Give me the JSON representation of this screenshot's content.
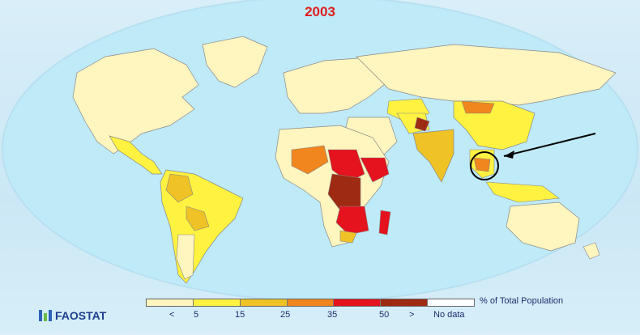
{
  "title": "2003",
  "legend": {
    "unit_label": "% of Total Population",
    "categories": [
      {
        "label": "<",
        "color": "#fff5bf"
      },
      {
        "label": "5",
        "color": "#fff240"
      },
      {
        "label": "15",
        "color": "#efc225"
      },
      {
        "label": "25",
        "color": "#f0861d"
      },
      {
        "label": "35",
        "color": "#e4131e"
      },
      {
        "label": "50",
        "color": "#9e2a12"
      },
      {
        "label": ">",
        "color": "#ffffff"
      },
      {
        "label": "No data",
        "color": "#ffffff"
      }
    ],
    "tick_labels": [
      "<",
      "5",
      "15",
      "25",
      "35",
      "50",
      ">",
      "No data"
    ]
  },
  "brand": {
    "name": "FAOSTAT"
  },
  "colors": {
    "ocean": "#b8e6f6",
    "land_default": "#fff5bf",
    "highlight_circle": "#000000"
  }
}
